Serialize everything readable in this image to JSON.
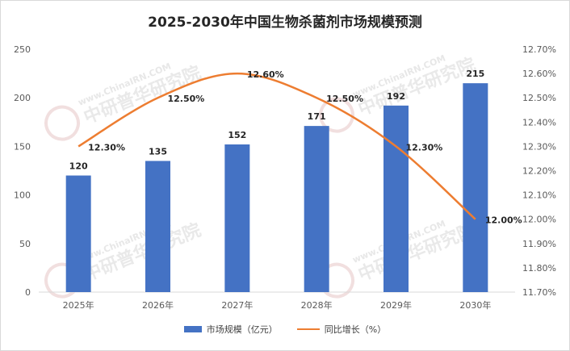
{
  "chart_data": {
    "type": "bar",
    "title": "2025-2030年中国生物杀菌剂市场规模预测",
    "categories": [
      "2025年",
      "2026年",
      "2027年",
      "2028年",
      "2029年",
      "2030年"
    ],
    "series": [
      {
        "name": "市场规模（亿元）",
        "type": "bar",
        "axis": "left",
        "color": "#4472c4",
        "values": [
          120,
          135,
          152,
          171,
          192,
          215
        ]
      },
      {
        "name": "同比增长（%）",
        "type": "line",
        "axis": "right",
        "color": "#ed7d31",
        "values": [
          12.3,
          12.5,
          12.6,
          12.5,
          12.3,
          12.0
        ],
        "labels": [
          "12.30%",
          "12.50%",
          "12.60%",
          "12.50%",
          "12.30%",
          "12.00%"
        ]
      }
    ],
    "ylim": [
      0,
      250
    ],
    "yticks": [
      "0",
      "50",
      "100",
      "150",
      "200",
      "250"
    ],
    "y2lim": [
      11.7,
      12.7
    ],
    "y2ticks": [
      "11.70%",
      "11.80%",
      "11.90%",
      "12.00%",
      "12.10%",
      "12.20%",
      "12.30%",
      "12.40%",
      "12.50%",
      "12.60%",
      "12.70%"
    ],
    "grid": false,
    "legend": "bottom"
  },
  "watermark": {
    "brand": "中研普华研究院",
    "logo": "CIRN",
    "site": "www.ChinaIRN.COM"
  }
}
